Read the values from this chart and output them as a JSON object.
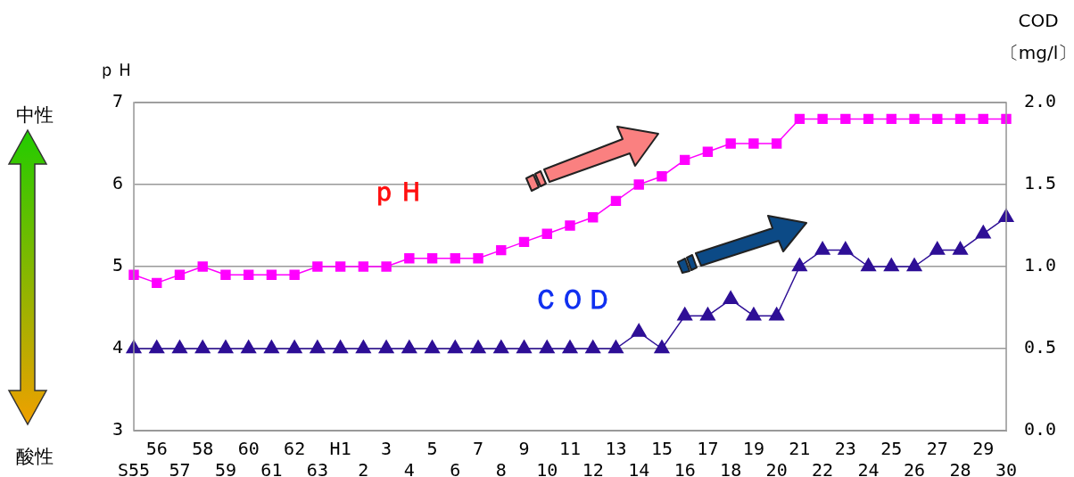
{
  "chart_data": {
    "type": "line",
    "categories": [
      "S55",
      "56",
      "57",
      "58",
      "59",
      "60",
      "61",
      "62",
      "63",
      "H1",
      "2",
      "3",
      "4",
      "5",
      "6",
      "7",
      "8",
      "9",
      "10",
      "11",
      "12",
      "13",
      "14",
      "15",
      "16",
      "17",
      "18",
      "19",
      "20",
      "21",
      "22",
      "23",
      "24",
      "25",
      "26",
      "27",
      "28",
      "29",
      "30"
    ],
    "series": [
      {
        "name": "ｐＨ",
        "color": "#ff00ff",
        "marker": "square",
        "values": [
          4.9,
          4.8,
          4.9,
          5.0,
          4.9,
          4.9,
          4.9,
          4.9,
          5.0,
          5.0,
          5.0,
          5.0,
          5.1,
          5.1,
          5.1,
          5.1,
          5.2,
          5.3,
          5.4,
          5.5,
          5.6,
          5.8,
          6.0,
          6.1,
          6.3,
          6.4,
          6.5,
          6.5,
          6.5,
          6.8,
          6.8,
          6.8,
          6.8,
          6.8,
          6.8,
          6.8,
          6.8,
          6.8,
          6.8
        ]
      },
      {
        "name": "ＣＯＤ",
        "color": "#2e0f96",
        "marker": "triangle",
        "axis": "y2",
        "values": [
          0.5,
          0.5,
          0.5,
          0.5,
          0.5,
          0.5,
          0.5,
          0.5,
          0.5,
          0.5,
          0.5,
          0.5,
          0.5,
          0.5,
          0.5,
          0.5,
          0.5,
          0.5,
          0.5,
          0.5,
          0.5,
          0.5,
          0.6,
          0.5,
          0.7,
          0.7,
          0.8,
          0.7,
          0.7,
          1.0,
          1.1,
          1.1,
          1.0,
          1.0,
          1.0,
          1.1,
          1.1,
          1.2,
          1.3
        ]
      }
    ],
    "ylabel": "ｐＨ",
    "y2label": "COD\n〔mg/l〕",
    "ylim": [
      3,
      7
    ],
    "yticks": [
      3,
      4,
      5,
      6,
      7
    ],
    "y2lim": [
      0,
      2
    ],
    "y2ticks": [
      {
        "value": 0,
        "label": "0.0"
      },
      {
        "value": 0.5,
        "label": "0.5"
      },
      {
        "value": 1,
        "label": "1.0"
      },
      {
        "value": 1.5,
        "label": "1.5"
      },
      {
        "value": 2,
        "label": "2.0"
      }
    ],
    "grid": "y",
    "legend": false,
    "annotations": [
      "中性",
      "酸性"
    ]
  }
}
